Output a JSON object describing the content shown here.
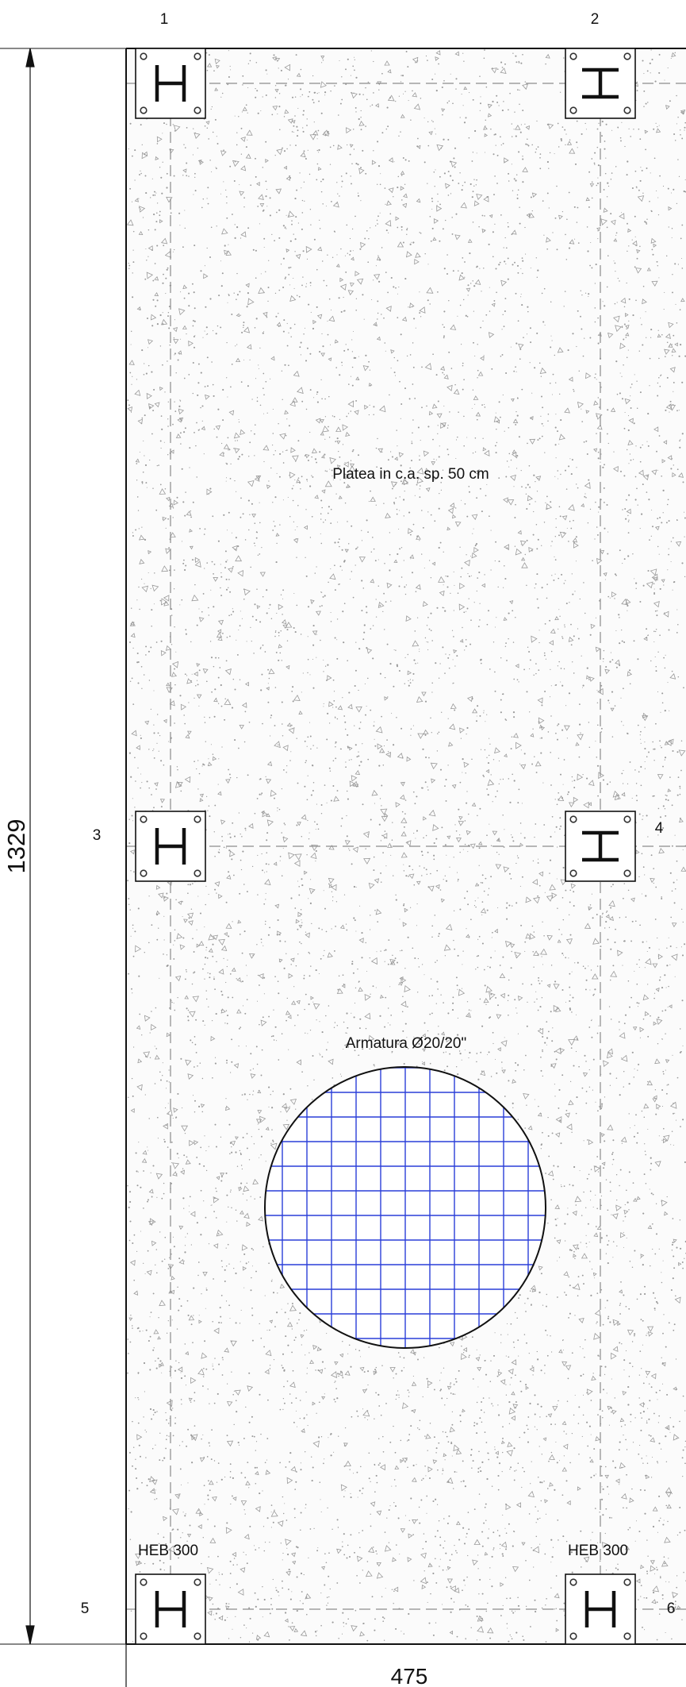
{
  "grid_labels": {
    "n1": "1",
    "n2": "2",
    "n3": "3",
    "n4": "4",
    "n5": "5",
    "n6": "6"
  },
  "dimensions": {
    "height": "1329",
    "width": "475"
  },
  "annotations": {
    "slab": "Platea in c.a. sp. 50 cm",
    "reinforcement": "Armatura Ø20/20\"",
    "profile_left": "HEB 300",
    "profile_right": "HEB 300"
  },
  "colors": {
    "line": "#111111",
    "axis": "#8c8c8c",
    "concrete_speckle": "#9a9a9a",
    "rebar_mesh": "#2a3fd9"
  },
  "icons": {
    "column": "steel-column-i-section-icon",
    "baseplate": "base-plate-icon",
    "bolt": "anchor-bolt-icon",
    "arrow": "dimension-arrow-icon"
  }
}
